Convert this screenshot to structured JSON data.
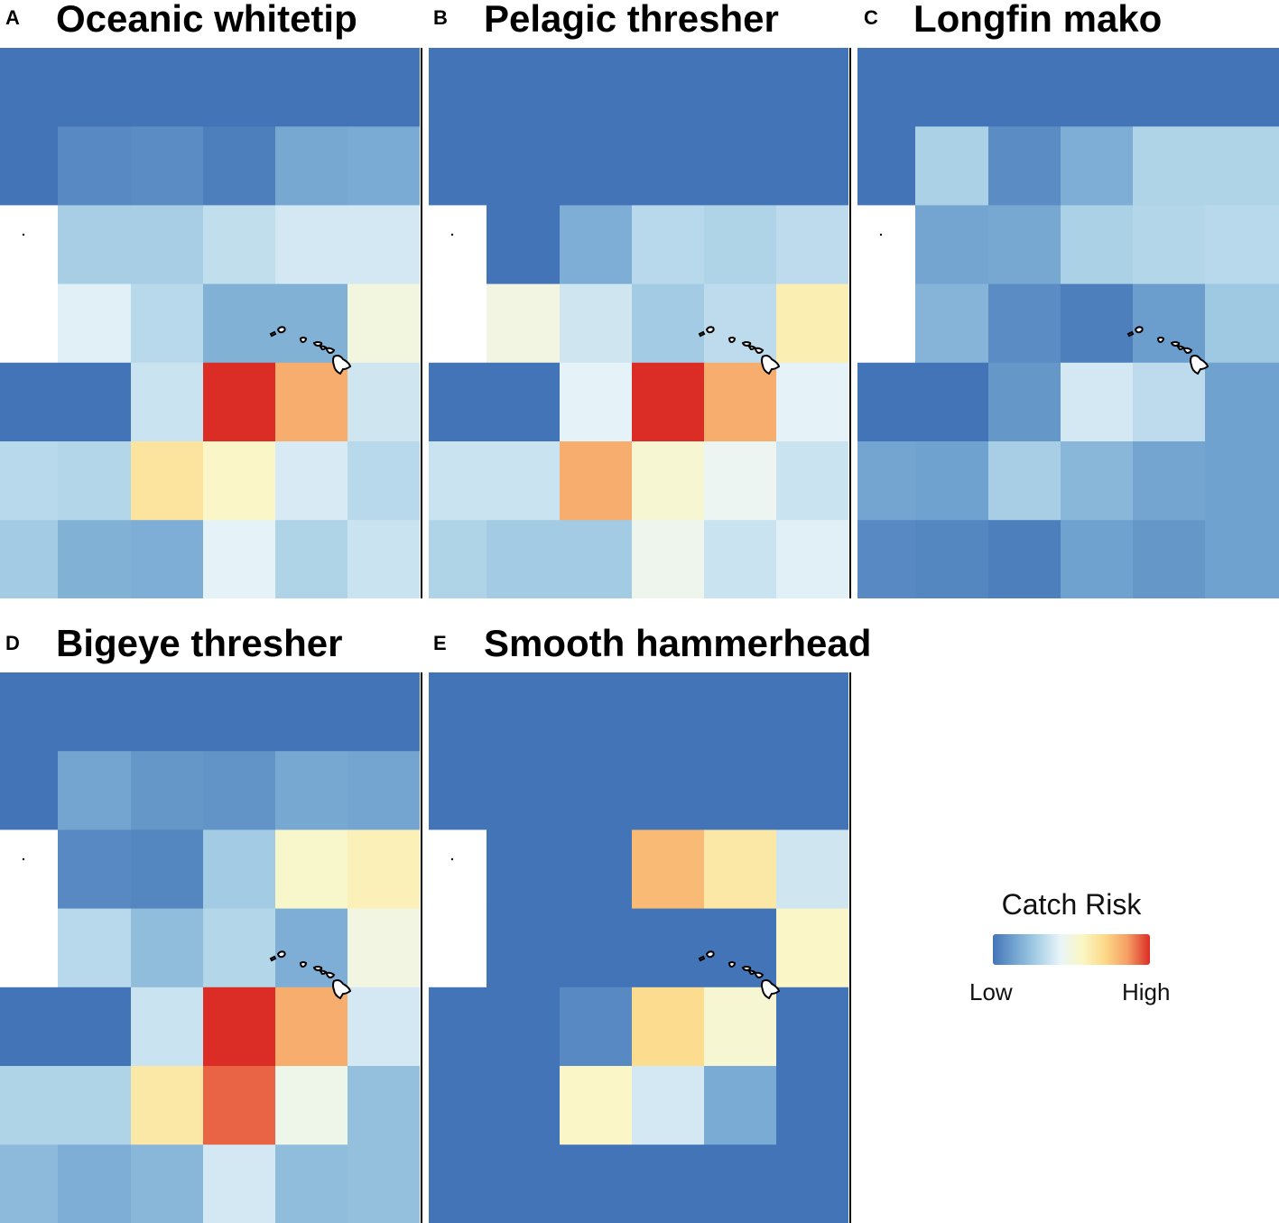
{
  "figure": {
    "colors": {
      "scale": [
        "#4374b7",
        "#74a6d1",
        "#a9d0e6",
        "#e9f5f9",
        "#fbf6c3",
        "#fcd988",
        "#f59e63",
        "#db2c26"
      ],
      "land_fill": "#ffffff",
      "island_outline": "#000000"
    },
    "panels": [
      {
        "letter": "A",
        "title": "Oceanic whitetip",
        "risk_grid": [
          [
            0.0,
            0.0,
            0.0,
            0.0,
            0.0,
            0.0
          ],
          [
            0.0,
            0.06,
            0.07,
            0.03,
            0.15,
            0.16
          ],
          [
            null,
            0.28,
            0.28,
            0.34,
            0.38,
            0.38
          ],
          [
            null,
            0.41,
            0.32,
            0.18,
            0.18,
            0.5
          ],
          [
            0.0,
            0.0,
            0.36,
            1.0,
            0.82,
            0.37
          ],
          [
            0.32,
            0.31,
            0.66,
            0.56,
            0.39,
            0.32
          ],
          [
            0.27,
            0.18,
            0.17,
            0.42,
            0.3,
            0.36
          ]
        ]
      },
      {
        "letter": "B",
        "title": "Pelagic thresher",
        "risk_grid": [
          [
            0.0,
            0.0,
            0.0,
            0.0,
            0.0,
            0.0
          ],
          [
            0.0,
            0.0,
            0.0,
            0.0,
            0.0,
            0.0
          ],
          [
            null,
            0.0,
            0.17,
            0.32,
            0.3,
            0.33
          ],
          [
            null,
            0.49,
            0.37,
            0.27,
            0.33,
            0.61
          ],
          [
            0.0,
            0.0,
            0.42,
            1.0,
            0.82,
            0.42
          ],
          [
            0.36,
            0.36,
            0.82,
            0.53,
            0.45,
            0.36
          ],
          [
            0.3,
            0.27,
            0.27,
            0.46,
            0.36,
            0.41
          ]
        ]
      },
      {
        "letter": "C",
        "title": "Longfin mako",
        "risk_grid": [
          [
            0.0,
            0.0,
            0.0,
            0.0,
            0.0,
            0.0
          ],
          [
            0.0,
            0.29,
            0.07,
            0.17,
            0.3,
            0.3
          ],
          [
            null,
            0.14,
            0.15,
            0.29,
            0.31,
            0.32
          ],
          [
            null,
            0.19,
            0.07,
            0.03,
            0.12,
            0.26
          ],
          [
            0.0,
            0.0,
            0.1,
            0.38,
            0.33,
            0.13
          ],
          [
            0.14,
            0.13,
            0.28,
            0.2,
            0.14,
            0.13
          ],
          [
            0.06,
            0.05,
            0.03,
            0.13,
            0.1,
            0.13
          ]
        ]
      },
      {
        "letter": "D",
        "title": "Bigeye thresher",
        "risk_grid": [
          [
            0.0,
            0.0,
            0.0,
            0.0,
            0.0,
            0.0
          ],
          [
            0.0,
            0.14,
            0.1,
            0.09,
            0.15,
            0.14
          ],
          [
            null,
            0.06,
            0.05,
            0.27,
            0.55,
            0.6
          ],
          [
            null,
            0.32,
            0.22,
            0.31,
            0.17,
            0.49
          ],
          [
            0.0,
            0.0,
            0.36,
            1.0,
            0.82,
            0.38
          ],
          [
            0.3,
            0.3,
            0.64,
            0.93,
            0.47,
            0.23
          ],
          [
            0.21,
            0.17,
            0.2,
            0.38,
            0.22,
            0.23
          ]
        ]
      },
      {
        "letter": "E",
        "title": "Smooth hammerhead",
        "risk_grid": [
          [
            0.0,
            0.0,
            0.0,
            0.0,
            0.0,
            0.0
          ],
          [
            0.0,
            0.0,
            0.0,
            0.0,
            0.0,
            0.0
          ],
          [
            null,
            0.0,
            0.0,
            0.79,
            0.64,
            0.37
          ],
          [
            null,
            0.0,
            0.0,
            0.0,
            0.0,
            0.56
          ],
          [
            0.0,
            0.0,
            0.06,
            0.7,
            0.53,
            0.0
          ],
          [
            0.0,
            0.0,
            0.56,
            0.38,
            0.16,
            0.0
          ],
          [
            0.0,
            0.0,
            0.0,
            0.0,
            0.0,
            0.0
          ]
        ]
      }
    ],
    "legend": {
      "title": "Catch Risk",
      "low_label": "Low",
      "high_label": "High"
    }
  }
}
